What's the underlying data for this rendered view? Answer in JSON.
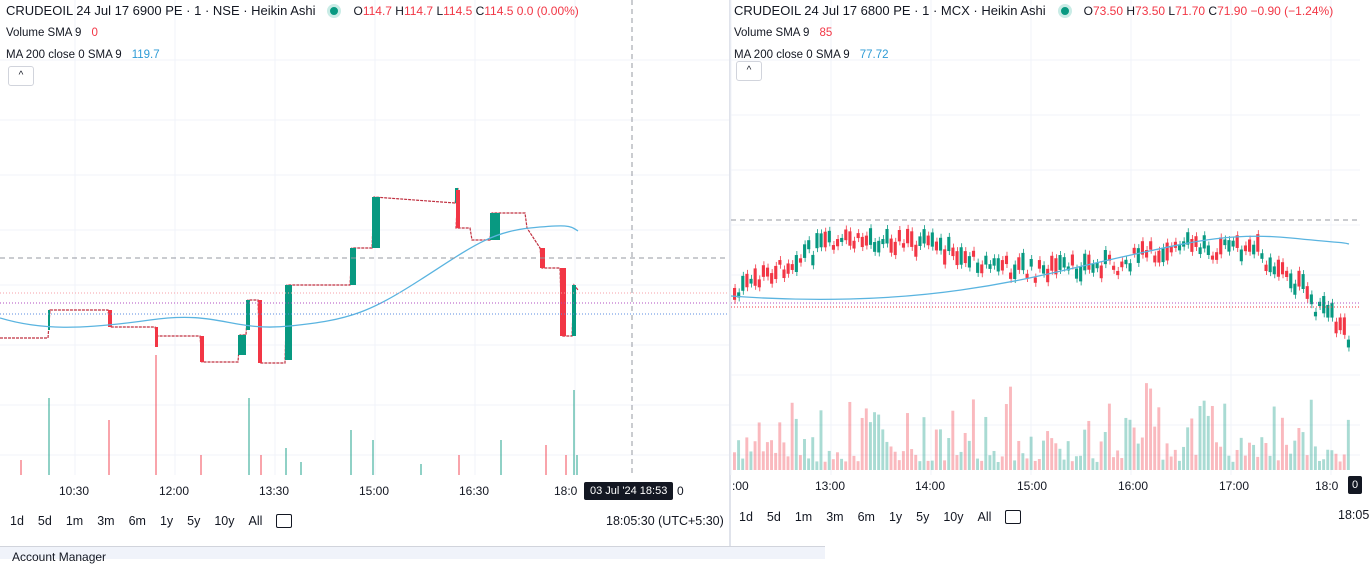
{
  "left": {
    "symbol": "CRUDEOIL 24 Jul 17 6900 PE · 1 · NSE · Heikin Ashi",
    "ohlc": {
      "o": "114.7",
      "h": "114.7",
      "l": "114.5",
      "c": "114.5",
      "chg": "0.0 (0.00%)"
    },
    "volume_label": "Volume SMA 9",
    "volume_value": "0",
    "ma_label": "MA 200 close 0 SMA 9",
    "ma_value": "119.7",
    "collapse": "^",
    "time_ticks": [
      "10:30",
      "12:00",
      "13:30",
      "15:00",
      "16:30",
      "18:0"
    ],
    "crosshair_time": "03 Jul '24   18:53",
    "crosshair_tail": "0",
    "ranges": [
      "1d",
      "5d",
      "1m",
      "3m",
      "6m",
      "1y",
      "5y",
      "10y",
      "All"
    ],
    "clock": "18:05:30 (UTC+5:30)"
  },
  "right": {
    "symbol": "CRUDEOIL 24 Jul 17 6800 PE · 1 · MCX · Heikin Ashi",
    "ohlc": {
      "o": "73.50",
      "h": "73.50",
      "l": "71.70",
      "c": "71.90",
      "chg": "−0.90 (−1.24%)"
    },
    "volume_label": "Volume SMA 9",
    "volume_value": "85",
    "ma_label": "MA 200 close 0 SMA 9",
    "ma_value": "77.72",
    "collapse": "^",
    "time_ticks": [
      ":00",
      "13:00",
      "14:00",
      "15:00",
      "16:00",
      "17:00",
      "18:0"
    ],
    "crosshair_tail": "0",
    "ranges": [
      "1d",
      "5d",
      "1m",
      "3m",
      "6m",
      "1y",
      "5y",
      "10y",
      "All"
    ],
    "clock": "18:05"
  },
  "account_manager": "Account Manager",
  "colors": {
    "up": "#089981",
    "down": "#f23645",
    "ma": "#5ab4e0",
    "grid": "#f0f3fa"
  }
}
